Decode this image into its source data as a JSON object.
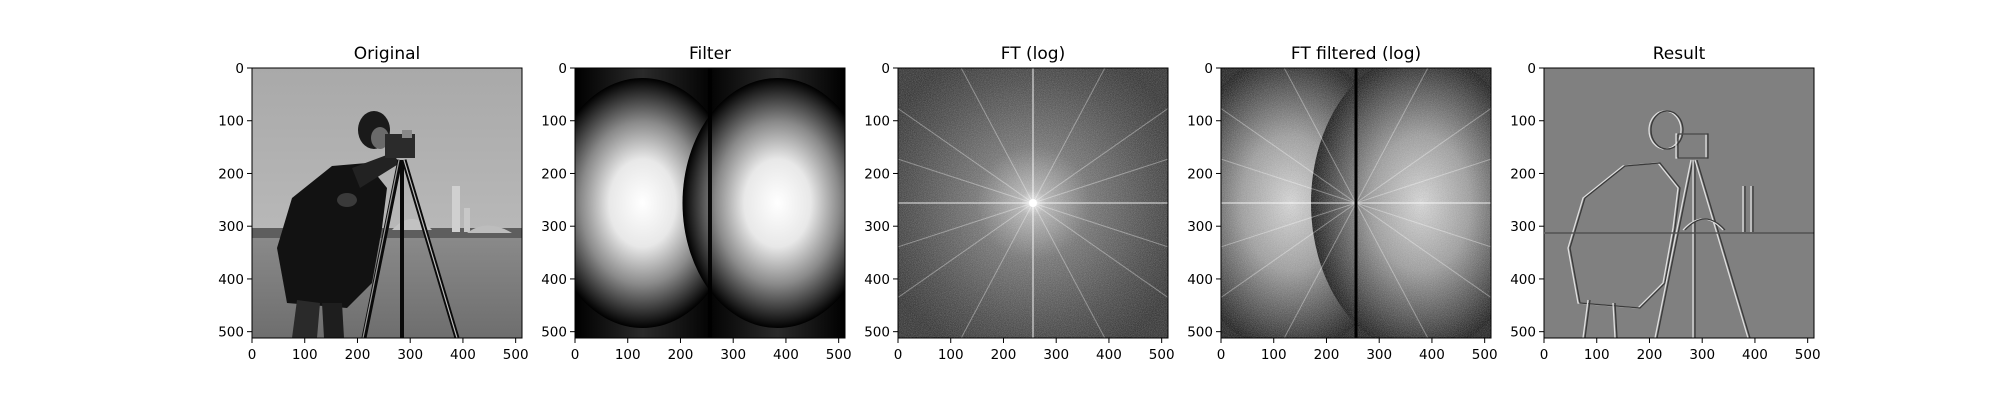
{
  "figure": {
    "background": "#ffffff",
    "colormap": "gray"
  },
  "chart_data": [
    {
      "type": "heatmap",
      "title": "Original",
      "content": "grayscale photograph of a man in a dark coat operating a camera on a tripod, grass field and buildings in background",
      "xticks": [
        0,
        100,
        200,
        300,
        400,
        500
      ],
      "yticks": [
        0,
        100,
        200,
        300,
        400,
        500
      ],
      "xlim": [
        0,
        512
      ],
      "ylim": [
        512,
        0
      ],
      "xlabel": "",
      "ylabel": ""
    },
    {
      "type": "heatmap",
      "title": "Filter",
      "content": "two bright Gaussian-like blobs centered near (128,256) and (384,256) on black, dark vertical band at x≈256",
      "xticks": [
        0,
        100,
        200,
        300,
        400,
        500
      ],
      "yticks": [
        0,
        100,
        200,
        300,
        400,
        500
      ],
      "xlim": [
        0,
        512
      ],
      "ylim": [
        512,
        0
      ],
      "xlabel": "",
      "ylabel": ""
    },
    {
      "type": "heatmap",
      "title": "FT (log)",
      "content": "log-magnitude Fourier spectrum, bright center at (256,256) with radiating streaks",
      "xticks": [
        0,
        100,
        200,
        300,
        400,
        500
      ],
      "yticks": [
        0,
        100,
        200,
        300,
        400,
        500
      ],
      "xlim": [
        0,
        512
      ],
      "ylim": [
        512,
        0
      ],
      "xlabel": "",
      "ylabel": ""
    },
    {
      "type": "heatmap",
      "title": "FT filtered (log)",
      "content": "filtered log spectrum, two bright lobes left and right, dark vertical line at x≈256",
      "xticks": [
        0,
        100,
        200,
        300,
        400,
        500
      ],
      "yticks": [
        0,
        100,
        200,
        300,
        400,
        500
      ],
      "xlim": [
        0,
        512
      ],
      "ylim": [
        512,
        0
      ],
      "xlabel": "",
      "ylabel": ""
    },
    {
      "type": "heatmap",
      "title": "Result",
      "content": "embossed edge image of the cameraman on mid-gray background",
      "xticks": [
        0,
        100,
        200,
        300,
        400,
        500
      ],
      "yticks": [
        0,
        100,
        200,
        300,
        400,
        500
      ],
      "xlim": [
        0,
        512
      ],
      "ylim": [
        512,
        0
      ],
      "xlabel": "",
      "ylabel": ""
    }
  ]
}
